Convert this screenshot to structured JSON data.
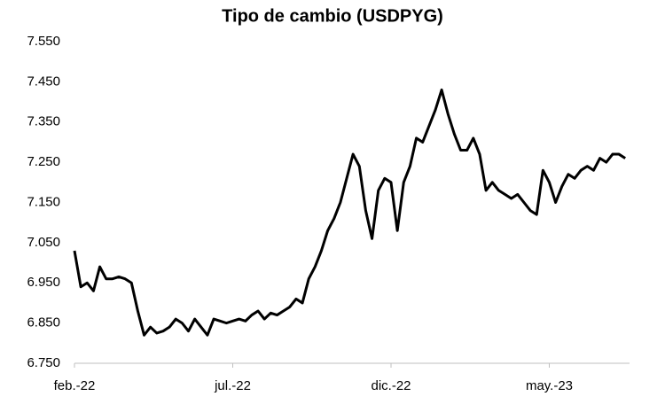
{
  "chart_data": {
    "type": "line",
    "title": "Tipo de cambio (USDPYG)",
    "categories": [
      "feb.-22",
      null,
      null,
      null,
      null,
      null,
      null,
      null,
      null,
      null,
      null,
      null,
      null,
      null,
      null,
      null,
      null,
      null,
      null,
      null,
      null,
      null,
      null,
      null,
      null,
      "jul.-22",
      null,
      null,
      null,
      null,
      null,
      null,
      null,
      null,
      null,
      null,
      null,
      null,
      null,
      null,
      null,
      null,
      null,
      null,
      null,
      null,
      null,
      null,
      null,
      null,
      "dic.-22",
      null,
      null,
      null,
      null,
      null,
      null,
      null,
      null,
      null,
      null,
      null,
      null,
      null,
      null,
      null,
      null,
      null,
      null,
      null,
      null,
      null,
      null,
      null,
      null,
      "may.-23",
      null,
      null,
      null,
      null,
      null,
      null,
      null,
      null,
      null,
      null,
      null,
      null
    ],
    "values": [
      7030,
      6940,
      6950,
      6930,
      6990,
      6960,
      6960,
      6965,
      6960,
      6950,
      6880,
      6820,
      6840,
      6825,
      6830,
      6840,
      6860,
      6850,
      6830,
      6860,
      6840,
      6820,
      6860,
      6855,
      6850,
      6855,
      6860,
      6855,
      6870,
      6880,
      6860,
      6875,
      6870,
      6880,
      6890,
      6910,
      6900,
      6960,
      6990,
      7030,
      7080,
      7110,
      7150,
      7210,
      7270,
      7240,
      7130,
      7060,
      7180,
      7210,
      7200,
      7080,
      7200,
      7240,
      7310,
      7300,
      7340,
      7380,
      7430,
      7370,
      7320,
      7280,
      7280,
      7310,
      7270,
      7180,
      7200,
      7180,
      7170,
      7160,
      7170,
      7150,
      7130,
      7120,
      7230,
      7200,
      7150,
      7190,
      7220,
      7210,
      7230,
      7240,
      7230,
      7260,
      7250,
      7270,
      7270,
      7260
    ],
    "color": "#000000",
    "ylim": [
      6750,
      7550
    ],
    "yticks": [
      {
        "value": 6750,
        "label": "6.750"
      },
      {
        "value": 6850,
        "label": "6.850"
      },
      {
        "value": 6950,
        "label": "6.950"
      },
      {
        "value": 7050,
        "label": "7.050"
      },
      {
        "value": 7150,
        "label": "7.150"
      },
      {
        "value": 7250,
        "label": "7.250"
      },
      {
        "value": 7350,
        "label": "7.350"
      },
      {
        "value": 7450,
        "label": "7.450"
      },
      {
        "value": 7550,
        "label": "7.550"
      }
    ],
    "grid": false
  }
}
